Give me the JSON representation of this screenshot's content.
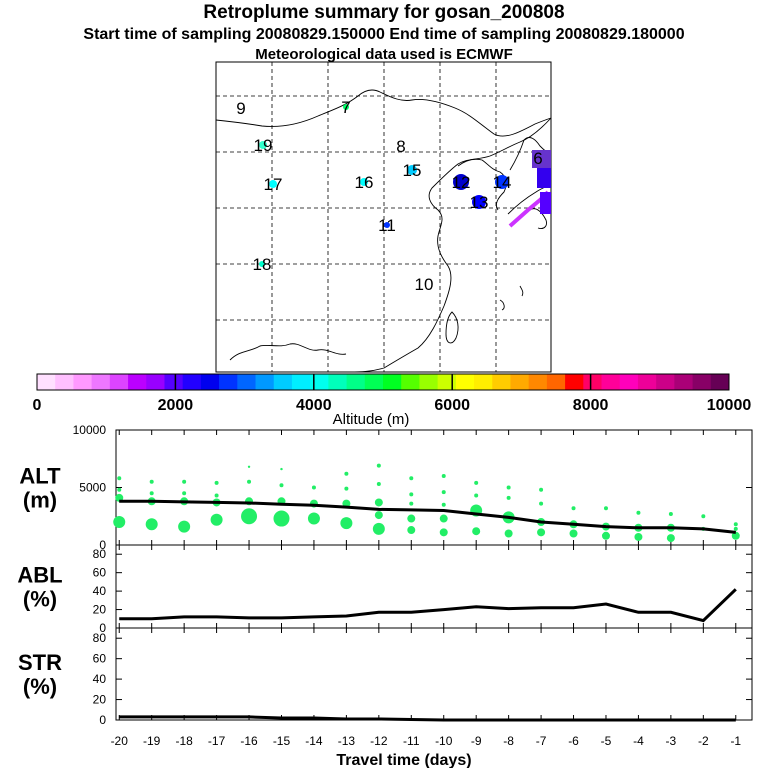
{
  "header": {
    "title": "Retroplume summary for gosan_200808",
    "sampling_line": "Start time of sampling 20080829.150000     End time of sampling 20080829.180000",
    "met_line": "Meteorological data used is ECMWF"
  },
  "map": {
    "markers": [
      {
        "label": "9",
        "color": "#000000"
      },
      {
        "label": "7",
        "color": "#00ff66"
      },
      {
        "label": "19",
        "color": "#33ffcc"
      },
      {
        "label": "8",
        "color": "#000000"
      },
      {
        "label": "17",
        "color": "#00ffff"
      },
      {
        "label": "16",
        "color": "#00ffff"
      },
      {
        "label": "15",
        "color": "#00ccff"
      },
      {
        "label": "12",
        "color": "#0000cc"
      },
      {
        "label": "14",
        "color": "#0033ff"
      },
      {
        "label": "6",
        "color": "#000000"
      },
      {
        "label": "13",
        "color": "#0000ff"
      },
      {
        "label": "11",
        "color": "#0033ff"
      },
      {
        "label": "18",
        "color": "#00ffcc"
      },
      {
        "label": "10",
        "color": "#000000"
      }
    ]
  },
  "colorbar": {
    "ticks": [
      "0",
      "2000",
      "4000",
      "6000",
      "8000",
      "10000"
    ],
    "label": "Altitude (m)",
    "colors": [
      "#ffe0ff",
      "#ffc0ff",
      "#ff99ff",
      "#ee77ff",
      "#dd44ff",
      "#bb00ff",
      "#9900ff",
      "#5500ff",
      "#2200ff",
      "#0000ee",
      "#0033ff",
      "#0066ff",
      "#0099ff",
      "#00ccff",
      "#00eeff",
      "#00ffee",
      "#00ffbb",
      "#00ff88",
      "#00ff55",
      "#00ff22",
      "#55ff00",
      "#99ff00",
      "#ccff00",
      "#ffff00",
      "#ffee00",
      "#ffcc00",
      "#ffaa00",
      "#ff8800",
      "#ff6600",
      "#ff0000",
      "#ff0066",
      "#ff0099",
      "#ff00bb",
      "#ee0099",
      "#cc0088",
      "#aa0077",
      "#880066",
      "#660055"
    ]
  },
  "chart_data": [
    {
      "type": "scatter",
      "title": "ALT (m)",
      "ylabel": "ALT\n(m)",
      "ylim": [
        0,
        10000
      ],
      "yticks": [
        "0",
        "5000",
        "10000"
      ],
      "x": [
        -20,
        -19,
        -18,
        -17,
        -16,
        -15,
        -14,
        -13,
        -12,
        -11,
        -10,
        -9,
        -8,
        -7,
        -6,
        -5,
        -4,
        -3,
        -2,
        -1
      ],
      "mean_line": [
        3800,
        3800,
        3750,
        3700,
        3650,
        3550,
        3450,
        3300,
        3100,
        3050,
        3000,
        2700,
        2400,
        2000,
        1800,
        1600,
        1500,
        1500,
        1400,
        1100
      ],
      "points": [
        {
          "x": -20,
          "y": 2000,
          "s": 3
        },
        {
          "x": -20,
          "y": 4100,
          "s": 2
        },
        {
          "x": -20,
          "y": 4800,
          "s": 1
        },
        {
          "x": -20,
          "y": 5800,
          "s": 1
        },
        {
          "x": -19,
          "y": 1800,
          "s": 3
        },
        {
          "x": -19,
          "y": 3800,
          "s": 2
        },
        {
          "x": -19,
          "y": 4500,
          "s": 1
        },
        {
          "x": -19,
          "y": 5500,
          "s": 1
        },
        {
          "x": -18,
          "y": 1600,
          "s": 3
        },
        {
          "x": -18,
          "y": 3800,
          "s": 2
        },
        {
          "x": -18,
          "y": 4500,
          "s": 1
        },
        {
          "x": -18,
          "y": 5500,
          "s": 1
        },
        {
          "x": -17,
          "y": 2200,
          "s": 3
        },
        {
          "x": -17,
          "y": 3700,
          "s": 2
        },
        {
          "x": -17,
          "y": 4300,
          "s": 1
        },
        {
          "x": -17,
          "y": 5400,
          "s": 1
        },
        {
          "x": -16,
          "y": 2500,
          "s": 4
        },
        {
          "x": -16,
          "y": 3800,
          "s": 2
        },
        {
          "x": -16,
          "y": 5500,
          "s": 1
        },
        {
          "x": -16,
          "y": 6800,
          "s": 0.5
        },
        {
          "x": -15,
          "y": 2300,
          "s": 4
        },
        {
          "x": -15,
          "y": 3800,
          "s": 2
        },
        {
          "x": -15,
          "y": 5200,
          "s": 1
        },
        {
          "x": -15,
          "y": 6600,
          "s": 0.5
        },
        {
          "x": -14,
          "y": 2300,
          "s": 3
        },
        {
          "x": -14,
          "y": 3600,
          "s": 2
        },
        {
          "x": -14,
          "y": 5000,
          "s": 1
        },
        {
          "x": -13,
          "y": 1900,
          "s": 3
        },
        {
          "x": -13,
          "y": 3600,
          "s": 2
        },
        {
          "x": -13,
          "y": 4900,
          "s": 1
        },
        {
          "x": -13,
          "y": 6200,
          "s": 1
        },
        {
          "x": -12,
          "y": 1400,
          "s": 3
        },
        {
          "x": -12,
          "y": 2600,
          "s": 2
        },
        {
          "x": -12,
          "y": 3700,
          "s": 2
        },
        {
          "x": -12,
          "y": 5300,
          "s": 1
        },
        {
          "x": -12,
          "y": 6900,
          "s": 1
        },
        {
          "x": -11,
          "y": 1300,
          "s": 2
        },
        {
          "x": -11,
          "y": 2300,
          "s": 2
        },
        {
          "x": -11,
          "y": 3600,
          "s": 1
        },
        {
          "x": -11,
          "y": 4400,
          "s": 1
        },
        {
          "x": -11,
          "y": 5800,
          "s": 1
        },
        {
          "x": -10,
          "y": 1100,
          "s": 2
        },
        {
          "x": -10,
          "y": 2300,
          "s": 2
        },
        {
          "x": -10,
          "y": 3500,
          "s": 1
        },
        {
          "x": -10,
          "y": 4600,
          "s": 1
        },
        {
          "x": -10,
          "y": 6000,
          "s": 1
        },
        {
          "x": -9,
          "y": 1200,
          "s": 2
        },
        {
          "x": -9,
          "y": 3000,
          "s": 3
        },
        {
          "x": -9,
          "y": 4300,
          "s": 1
        },
        {
          "x": -9,
          "y": 5400,
          "s": 1
        },
        {
          "x": -8,
          "y": 1000,
          "s": 2
        },
        {
          "x": -8,
          "y": 2400,
          "s": 3
        },
        {
          "x": -8,
          "y": 4100,
          "s": 1
        },
        {
          "x": -8,
          "y": 5000,
          "s": 1
        },
        {
          "x": -7,
          "y": 1100,
          "s": 2
        },
        {
          "x": -7,
          "y": 2000,
          "s": 2
        },
        {
          "x": -7,
          "y": 3600,
          "s": 1
        },
        {
          "x": -7,
          "y": 4800,
          "s": 1
        },
        {
          "x": -6,
          "y": 1000,
          "s": 2
        },
        {
          "x": -6,
          "y": 1800,
          "s": 2
        },
        {
          "x": -6,
          "y": 3200,
          "s": 1
        },
        {
          "x": -5,
          "y": 800,
          "s": 2
        },
        {
          "x": -5,
          "y": 1600,
          "s": 2
        },
        {
          "x": -5,
          "y": 3200,
          "s": 1
        },
        {
          "x": -4,
          "y": 700,
          "s": 2
        },
        {
          "x": -4,
          "y": 1500,
          "s": 2
        },
        {
          "x": -4,
          "y": 2800,
          "s": 1
        },
        {
          "x": -3,
          "y": 600,
          "s": 2
        },
        {
          "x": -3,
          "y": 1500,
          "s": 2
        },
        {
          "x": -3,
          "y": 2700,
          "s": 1
        },
        {
          "x": -2,
          "y": 1400,
          "s": 1
        },
        {
          "x": -2,
          "y": 2500,
          "s": 1
        },
        {
          "x": -1,
          "y": 800,
          "s": 2
        },
        {
          "x": -1,
          "y": 1400,
          "s": 1
        },
        {
          "x": -1,
          "y": 1800,
          "s": 1
        }
      ]
    },
    {
      "type": "line",
      "title": "ABL (%)",
      "ylabel": "ABL\n(%)",
      "ylim": [
        0,
        90
      ],
      "yticks": [
        "0",
        "20",
        "40",
        "60",
        "80"
      ],
      "x": [
        -20,
        -19,
        -18,
        -17,
        -16,
        -15,
        -14,
        -13,
        -12,
        -11,
        -10,
        -9,
        -8,
        -7,
        -6,
        -5,
        -4,
        -3,
        -2,
        -1
      ],
      "values": [
        10,
        10,
        12,
        12,
        11,
        11,
        12,
        13,
        17,
        17,
        20,
        23,
        21,
        22,
        22,
        26,
        17,
        17,
        8,
        42
      ]
    },
    {
      "type": "line",
      "title": "STR (%)",
      "ylabel": "STR\n(%)",
      "ylim": [
        0,
        90
      ],
      "yticks": [
        "0",
        "20",
        "40",
        "60",
        "80"
      ],
      "x": [
        -20,
        -19,
        -18,
        -17,
        -16,
        -15,
        -14,
        -13,
        -12,
        -11,
        -10,
        -9,
        -8,
        -7,
        -6,
        -5,
        -4,
        -3,
        -2,
        -1
      ],
      "values": [
        3,
        3,
        3,
        3,
        3,
        2,
        2,
        1,
        1,
        0.5,
        0,
        0,
        0,
        0,
        0,
        0,
        0,
        0,
        0,
        0
      ],
      "xlabel": "Travel time (days)",
      "xticks": [
        "-20",
        "-19",
        "-18",
        "-17",
        "-16",
        "-15",
        "-14",
        "-13",
        "-12",
        "-11",
        "-10",
        "-9",
        "-8",
        "-7",
        "-6",
        "-5",
        "-4",
        "-3",
        "-2",
        "-1"
      ]
    }
  ]
}
